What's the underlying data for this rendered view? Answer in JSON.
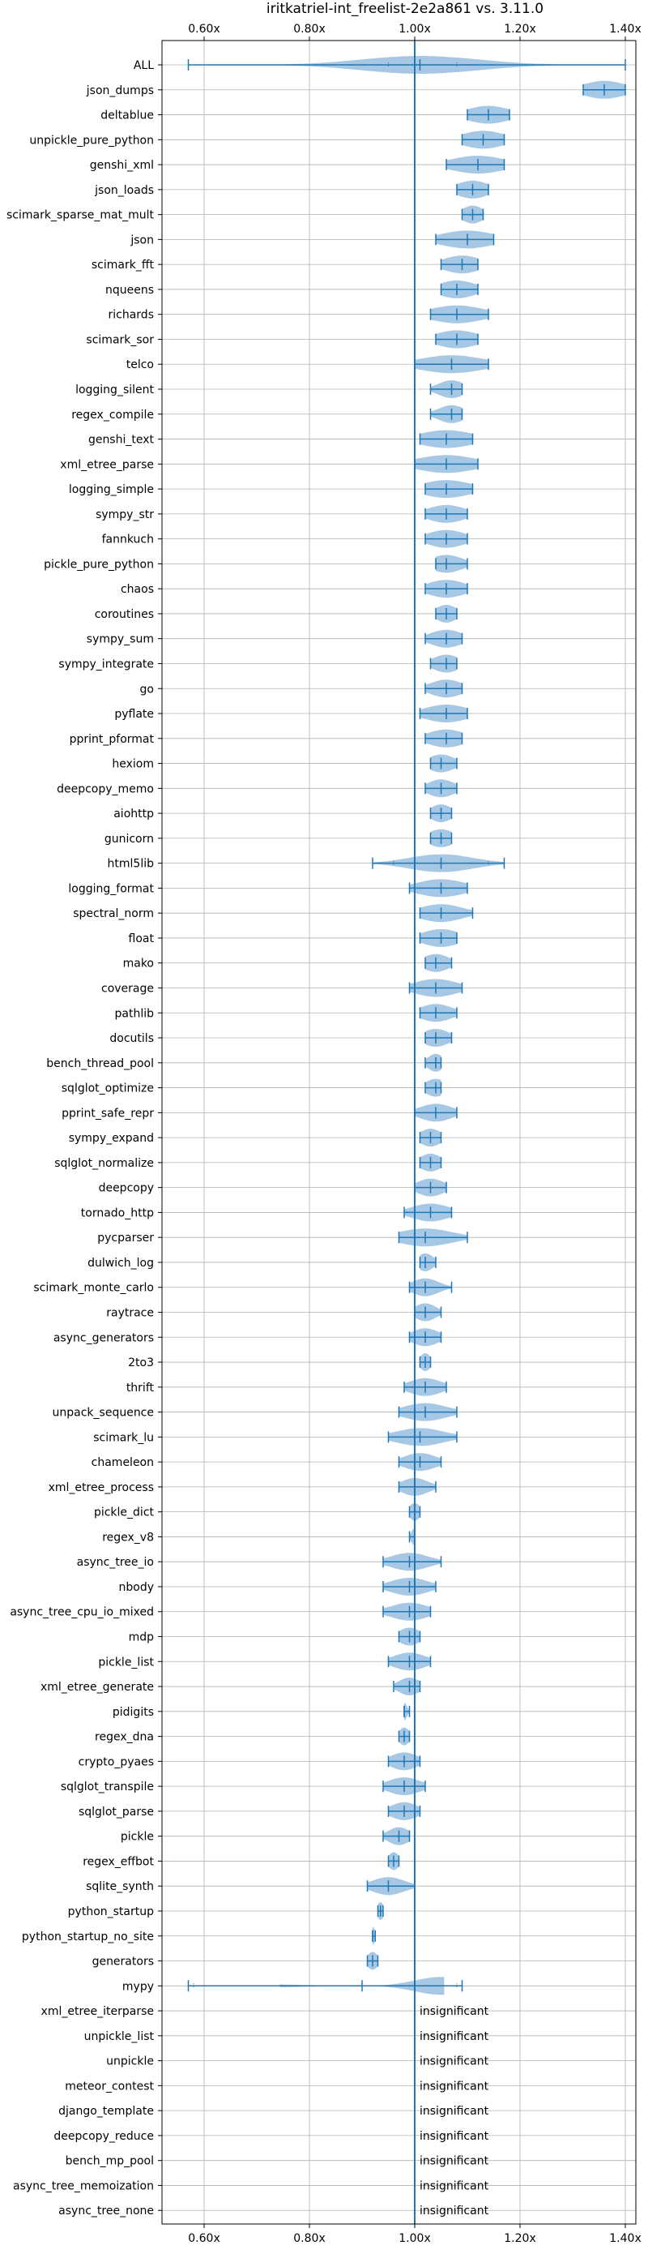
{
  "chart_data": {
    "type": "violin",
    "title": "iritkatriel-int_freelist-2e2a861 vs. 3.11.0",
    "xlabel": "",
    "ylabel": "",
    "xlim": [
      0.52,
      1.42
    ],
    "x_ticks": [
      {
        "value": 0.6,
        "label": "0.60x"
      },
      {
        "value": 0.8,
        "label": "0.80x"
      },
      {
        "value": 1.0,
        "label": "1.00x"
      },
      {
        "value": 1.2,
        "label": "1.20x"
      },
      {
        "value": 1.4,
        "label": "1.40x"
      }
    ],
    "reference_line": 1.0,
    "grid": true,
    "colors": {
      "violin": "#a6c8e4",
      "whisker": "#1f77b4",
      "grid": "#b0b0b0",
      "reference": "#1f77b4"
    },
    "insignificant_label": "insignificant",
    "series": [
      {
        "name": "ALL",
        "min": 0.57,
        "max": 1.4,
        "mean": 1.01,
        "q1": 0.95,
        "q3": 1.08,
        "spread": 0.11
      },
      {
        "name": "json_dumps",
        "min": 1.32,
        "max": 1.4,
        "mean": 1.36,
        "spread": 0.04
      },
      {
        "name": "deltablue",
        "min": 1.1,
        "max": 1.18,
        "mean": 1.14,
        "spread": 0.04
      },
      {
        "name": "unpickle_pure_python",
        "min": 1.09,
        "max": 1.17,
        "mean": 1.13,
        "spread": 0.04
      },
      {
        "name": "genshi_xml",
        "min": 1.06,
        "max": 1.17,
        "mean": 1.12,
        "spread": 0.05
      },
      {
        "name": "json_loads",
        "min": 1.08,
        "max": 1.14,
        "mean": 1.11,
        "spread": 0.03
      },
      {
        "name": "scimark_sparse_mat_mult",
        "min": 1.09,
        "max": 1.13,
        "mean": 1.11,
        "spread": 0.02
      },
      {
        "name": "json",
        "min": 1.04,
        "max": 1.15,
        "mean": 1.1,
        "spread": 0.05
      },
      {
        "name": "scimark_fft",
        "min": 1.05,
        "max": 1.12,
        "mean": 1.09,
        "spread": 0.035
      },
      {
        "name": "nqueens",
        "min": 1.05,
        "max": 1.12,
        "mean": 1.08,
        "spread": 0.035
      },
      {
        "name": "richards",
        "min": 1.03,
        "max": 1.14,
        "mean": 1.08,
        "spread": 0.05
      },
      {
        "name": "scimark_sor",
        "min": 1.04,
        "max": 1.12,
        "mean": 1.08,
        "spread": 0.04
      },
      {
        "name": "telco",
        "min": 1.0,
        "max": 1.14,
        "mean": 1.07,
        "spread": 0.06
      },
      {
        "name": "logging_silent",
        "min": 1.03,
        "max": 1.09,
        "mean": 1.07,
        "spread": 0.025
      },
      {
        "name": "regex_compile",
        "min": 1.03,
        "max": 1.09,
        "mean": 1.07,
        "spread": 0.025
      },
      {
        "name": "genshi_text",
        "min": 1.01,
        "max": 1.11,
        "mean": 1.06,
        "spread": 0.05
      },
      {
        "name": "xml_etree_parse",
        "min": 1.0,
        "max": 1.12,
        "mean": 1.06,
        "spread": 0.055
      },
      {
        "name": "logging_simple",
        "min": 1.02,
        "max": 1.11,
        "mean": 1.06,
        "spread": 0.045
      },
      {
        "name": "sympy_str",
        "min": 1.02,
        "max": 1.1,
        "mean": 1.06,
        "spread": 0.035
      },
      {
        "name": "fannkuch",
        "min": 1.02,
        "max": 1.1,
        "mean": 1.06,
        "spread": 0.035
      },
      {
        "name": "pickle_pure_python",
        "min": 1.04,
        "max": 1.1,
        "mean": 1.06,
        "spread": 0.03
      },
      {
        "name": "chaos",
        "min": 1.02,
        "max": 1.1,
        "mean": 1.06,
        "spread": 0.035
      },
      {
        "name": "coroutines",
        "min": 1.04,
        "max": 1.08,
        "mean": 1.06,
        "spread": 0.02
      },
      {
        "name": "sympy_sum",
        "min": 1.02,
        "max": 1.09,
        "mean": 1.06,
        "spread": 0.03
      },
      {
        "name": "sympy_integrate",
        "min": 1.03,
        "max": 1.08,
        "mean": 1.06,
        "spread": 0.025
      },
      {
        "name": "go",
        "min": 1.02,
        "max": 1.09,
        "mean": 1.06,
        "spread": 0.03
      },
      {
        "name": "pyflate",
        "min": 1.01,
        "max": 1.1,
        "mean": 1.06,
        "spread": 0.04
      },
      {
        "name": "pprint_pformat",
        "min": 1.02,
        "max": 1.09,
        "mean": 1.06,
        "spread": 0.035
      },
      {
        "name": "hexiom",
        "min": 1.03,
        "max": 1.08,
        "mean": 1.05,
        "spread": 0.025
      },
      {
        "name": "deepcopy_memo",
        "min": 1.02,
        "max": 1.08,
        "mean": 1.05,
        "spread": 0.025
      },
      {
        "name": "aiohttp",
        "min": 1.03,
        "max": 1.07,
        "mean": 1.05,
        "spread": 0.02
      },
      {
        "name": "gunicorn",
        "min": 1.03,
        "max": 1.07,
        "mean": 1.05,
        "spread": 0.025
      },
      {
        "name": "html5lib",
        "min": 0.92,
        "max": 1.17,
        "mean": 1.05,
        "q1": 0.96,
        "q3": 1.14,
        "spread": 0.06
      },
      {
        "name": "logging_format",
        "min": 0.99,
        "max": 1.1,
        "mean": 1.05,
        "spread": 0.045
      },
      {
        "name": "spectral_norm",
        "min": 1.01,
        "max": 1.11,
        "mean": 1.05,
        "spread": 0.04
      },
      {
        "name": "float",
        "min": 1.01,
        "max": 1.08,
        "mean": 1.05,
        "spread": 0.035
      },
      {
        "name": "mako",
        "min": 1.02,
        "max": 1.07,
        "mean": 1.04,
        "spread": 0.025
      },
      {
        "name": "coverage",
        "min": 0.99,
        "max": 1.09,
        "mean": 1.04,
        "spread": 0.04
      },
      {
        "name": "pathlib",
        "min": 1.01,
        "max": 1.08,
        "mean": 1.04,
        "spread": 0.03
      },
      {
        "name": "docutils",
        "min": 1.02,
        "max": 1.07,
        "mean": 1.04,
        "spread": 0.025
      },
      {
        "name": "bench_thread_pool",
        "min": 1.02,
        "max": 1.05,
        "mean": 1.04,
        "spread": 0.015
      },
      {
        "name": "sqlglot_optimize",
        "min": 1.02,
        "max": 1.05,
        "mean": 1.04,
        "spread": 0.02
      },
      {
        "name": "pprint_safe_repr",
        "min": 1.0,
        "max": 1.08,
        "mean": 1.04,
        "spread": 0.03
      },
      {
        "name": "sympy_expand",
        "min": 1.01,
        "max": 1.05,
        "mean": 1.03,
        "spread": 0.02
      },
      {
        "name": "sqlglot_normalize",
        "min": 1.01,
        "max": 1.05,
        "mean": 1.03,
        "spread": 0.02
      },
      {
        "name": "deepcopy",
        "min": 1.0,
        "max": 1.06,
        "mean": 1.03,
        "spread": 0.025
      },
      {
        "name": "tornado_http",
        "min": 0.98,
        "max": 1.07,
        "mean": 1.03,
        "spread": 0.035
      },
      {
        "name": "pycparser",
        "min": 0.97,
        "max": 1.1,
        "mean": 1.02,
        "spread": 0.05
      },
      {
        "name": "dulwich_log",
        "min": 1.01,
        "max": 1.04,
        "mean": 1.02,
        "spread": 0.015
      },
      {
        "name": "scimark_monte_carlo",
        "min": 0.99,
        "max": 1.07,
        "mean": 1.02,
        "spread": 0.025
      },
      {
        "name": "raytrace",
        "min": 1.0,
        "max": 1.05,
        "mean": 1.02,
        "spread": 0.02
      },
      {
        "name": "async_generators",
        "min": 0.99,
        "max": 1.05,
        "mean": 1.02,
        "spread": 0.025
      },
      {
        "name": "2to3",
        "min": 1.01,
        "max": 1.03,
        "mean": 1.02,
        "spread": 0.01
      },
      {
        "name": "thrift",
        "min": 0.98,
        "max": 1.06,
        "mean": 1.02,
        "spread": 0.03
      },
      {
        "name": "unpack_sequence",
        "min": 0.97,
        "max": 1.08,
        "mean": 1.02,
        "spread": 0.04
      },
      {
        "name": "scimark_lu",
        "min": 0.95,
        "max": 1.08,
        "mean": 1.01,
        "spread": 0.045
      },
      {
        "name": "chameleon",
        "min": 0.97,
        "max": 1.05,
        "mean": 1.01,
        "spread": 0.03
      },
      {
        "name": "xml_etree_process",
        "min": 0.97,
        "max": 1.04,
        "mean": 1.0,
        "spread": 0.025
      },
      {
        "name": "pickle_dict",
        "min": 0.99,
        "max": 1.01,
        "mean": 1.0,
        "spread": 0.01
      },
      {
        "name": "regex_v8",
        "min": 0.99,
        "max": 1.0,
        "mean": 1.0,
        "spread": 0.006
      },
      {
        "name": "async_tree_io",
        "min": 0.94,
        "max": 1.05,
        "mean": 0.99,
        "spread": 0.035
      },
      {
        "name": "nbody",
        "min": 0.94,
        "max": 1.04,
        "mean": 0.99,
        "spread": 0.035
      },
      {
        "name": "async_tree_cpu_io_mixed",
        "min": 0.94,
        "max": 1.03,
        "mean": 0.99,
        "spread": 0.035
      },
      {
        "name": "mdp",
        "min": 0.97,
        "max": 1.01,
        "mean": 0.99,
        "spread": 0.02
      },
      {
        "name": "pickle_list",
        "min": 0.95,
        "max": 1.03,
        "mean": 0.99,
        "spread": 0.03
      },
      {
        "name": "xml_etree_generate",
        "min": 0.96,
        "max": 1.01,
        "mean": 0.99,
        "spread": 0.02
      },
      {
        "name": "pidigits",
        "min": 0.98,
        "max": 0.99,
        "mean": 0.98,
        "spread": 0.005
      },
      {
        "name": "regex_dna",
        "min": 0.97,
        "max": 0.99,
        "mean": 0.98,
        "spread": 0.01
      },
      {
        "name": "crypto_pyaes",
        "min": 0.95,
        "max": 1.01,
        "mean": 0.98,
        "spread": 0.025
      },
      {
        "name": "sqlglot_transpile",
        "min": 0.94,
        "max": 1.02,
        "mean": 0.98,
        "spread": 0.03
      },
      {
        "name": "sqlglot_parse",
        "min": 0.95,
        "max": 1.01,
        "mean": 0.98,
        "spread": 0.025
      },
      {
        "name": "pickle",
        "min": 0.94,
        "max": 0.99,
        "mean": 0.97,
        "spread": 0.02
      },
      {
        "name": "regex_effbot",
        "min": 0.95,
        "max": 0.97,
        "mean": 0.96,
        "spread": 0.01
      },
      {
        "name": "sqlite_synth",
        "min": 0.91,
        "max": 1.0,
        "mean": 0.95,
        "spread": 0.03
      },
      {
        "name": "python_startup",
        "min": 0.93,
        "max": 0.94,
        "mean": 0.935,
        "spread": 0.006
      },
      {
        "name": "python_startup_no_site",
        "min": 0.92,
        "max": 0.925,
        "mean": 0.92,
        "spread": 0.005
      },
      {
        "name": "generators",
        "min": 0.91,
        "max": 0.93,
        "mean": 0.92,
        "spread": 0.01
      },
      {
        "name": "mypy",
        "min": 0.57,
        "max": 1.09,
        "mean": 0.9,
        "q1": 0.58,
        "q3": 1.08,
        "spread": 0.06,
        "skew": "right"
      },
      {
        "name": "xml_etree_iterparse",
        "insignificant": true
      },
      {
        "name": "unpickle_list",
        "insignificant": true
      },
      {
        "name": "unpickle",
        "insignificant": true
      },
      {
        "name": "meteor_contest",
        "insignificant": true
      },
      {
        "name": "django_template",
        "insignificant": true
      },
      {
        "name": "deepcopy_reduce",
        "insignificant": true
      },
      {
        "name": "bench_mp_pool",
        "insignificant": true
      },
      {
        "name": "async_tree_memoization",
        "insignificant": true
      },
      {
        "name": "async_tree_none",
        "insignificant": true
      }
    ]
  }
}
